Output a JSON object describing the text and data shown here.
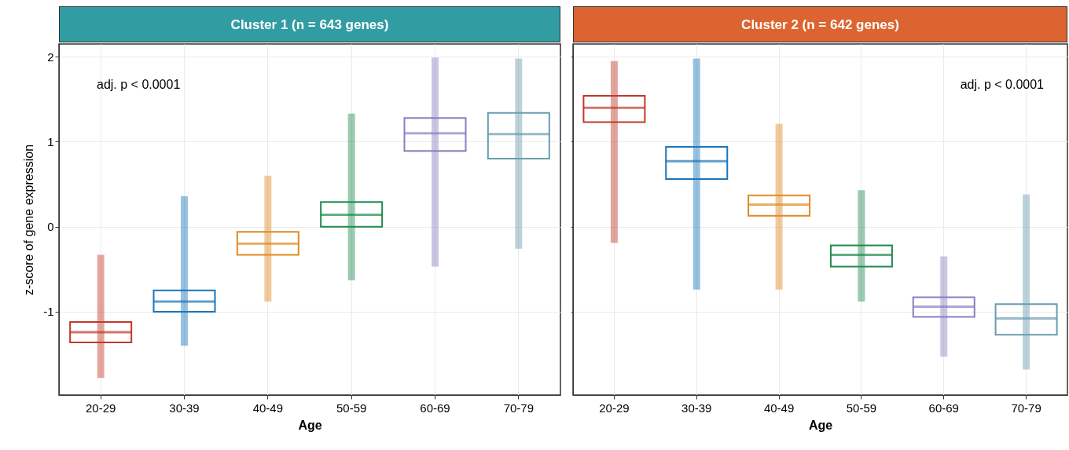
{
  "chart_data": [
    {
      "type": "box",
      "title": "Cluster 1 (n = 643 genes)",
      "xlabel": "Age",
      "ylabel": "z-score of gene expression",
      "annotations": [
        "adj. p < 0.0001"
      ],
      "categories": [
        "20-29",
        "30-39",
        "40-49",
        "50-59",
        "60-69",
        "70-79"
      ],
      "colors": [
        "#c0392b",
        "#1b75bb",
        "#e08a24",
        "#218a4f",
        "#8a7fc0",
        "#6a9cb0"
      ],
      "boxes": [
        {
          "low": -1.78,
          "q1": -1.36,
          "median": -1.24,
          "q3": -1.12,
          "high": -0.33
        },
        {
          "low": -1.4,
          "q1": -1.0,
          "median": -0.88,
          "q3": -0.75,
          "high": 0.36
        },
        {
          "low": -0.88,
          "q1": -0.33,
          "median": -0.2,
          "q3": -0.06,
          "high": 0.6
        },
        {
          "low": -0.63,
          "q1": 0.0,
          "median": 0.14,
          "q3": 0.29,
          "high": 1.33
        },
        {
          "low": -0.47,
          "q1": 0.89,
          "median": 1.1,
          "q3": 1.28,
          "high": 1.99
        },
        {
          "low": -0.26,
          "q1": 0.8,
          "median": 1.09,
          "q3": 1.34,
          "high": 1.98
        }
      ],
      "ylim": [
        -1.98,
        2.15
      ],
      "yticks": [
        -1,
        0,
        1,
        2
      ],
      "grid": true
    },
    {
      "type": "box",
      "title": "Cluster 2 (n = 642 genes)",
      "xlabel": "Age",
      "annotations": [
        "adj. p < 0.0001"
      ],
      "categories": [
        "20-29",
        "30-39",
        "40-49",
        "50-59",
        "60-69",
        "70-79"
      ],
      "colors": [
        "#c0392b",
        "#1b75bb",
        "#e08a24",
        "#218a4f",
        "#8a7fc0",
        "#6a9cb0"
      ],
      "boxes": [
        {
          "low": -0.19,
          "q1": 1.23,
          "median": 1.4,
          "q3": 1.54,
          "high": 1.95
        },
        {
          "low": -0.74,
          "q1": 0.56,
          "median": 0.77,
          "q3": 0.94,
          "high": 1.98
        },
        {
          "low": -0.74,
          "q1": 0.13,
          "median": 0.26,
          "q3": 0.37,
          "high": 1.21
        },
        {
          "low": -0.88,
          "q1": -0.47,
          "median": -0.33,
          "q3": -0.22,
          "high": 0.43
        },
        {
          "low": -1.53,
          "q1": -1.06,
          "median": -0.94,
          "q3": -0.83,
          "high": -0.35
        },
        {
          "low": -1.68,
          "q1": -1.27,
          "median": -1.08,
          "q3": -0.91,
          "high": 0.38
        }
      ],
      "ylim": [
        -1.98,
        2.15
      ],
      "yticks": [
        -1,
        0,
        1,
        2
      ],
      "grid": true,
      "tick_labels": "x"
    }
  ]
}
